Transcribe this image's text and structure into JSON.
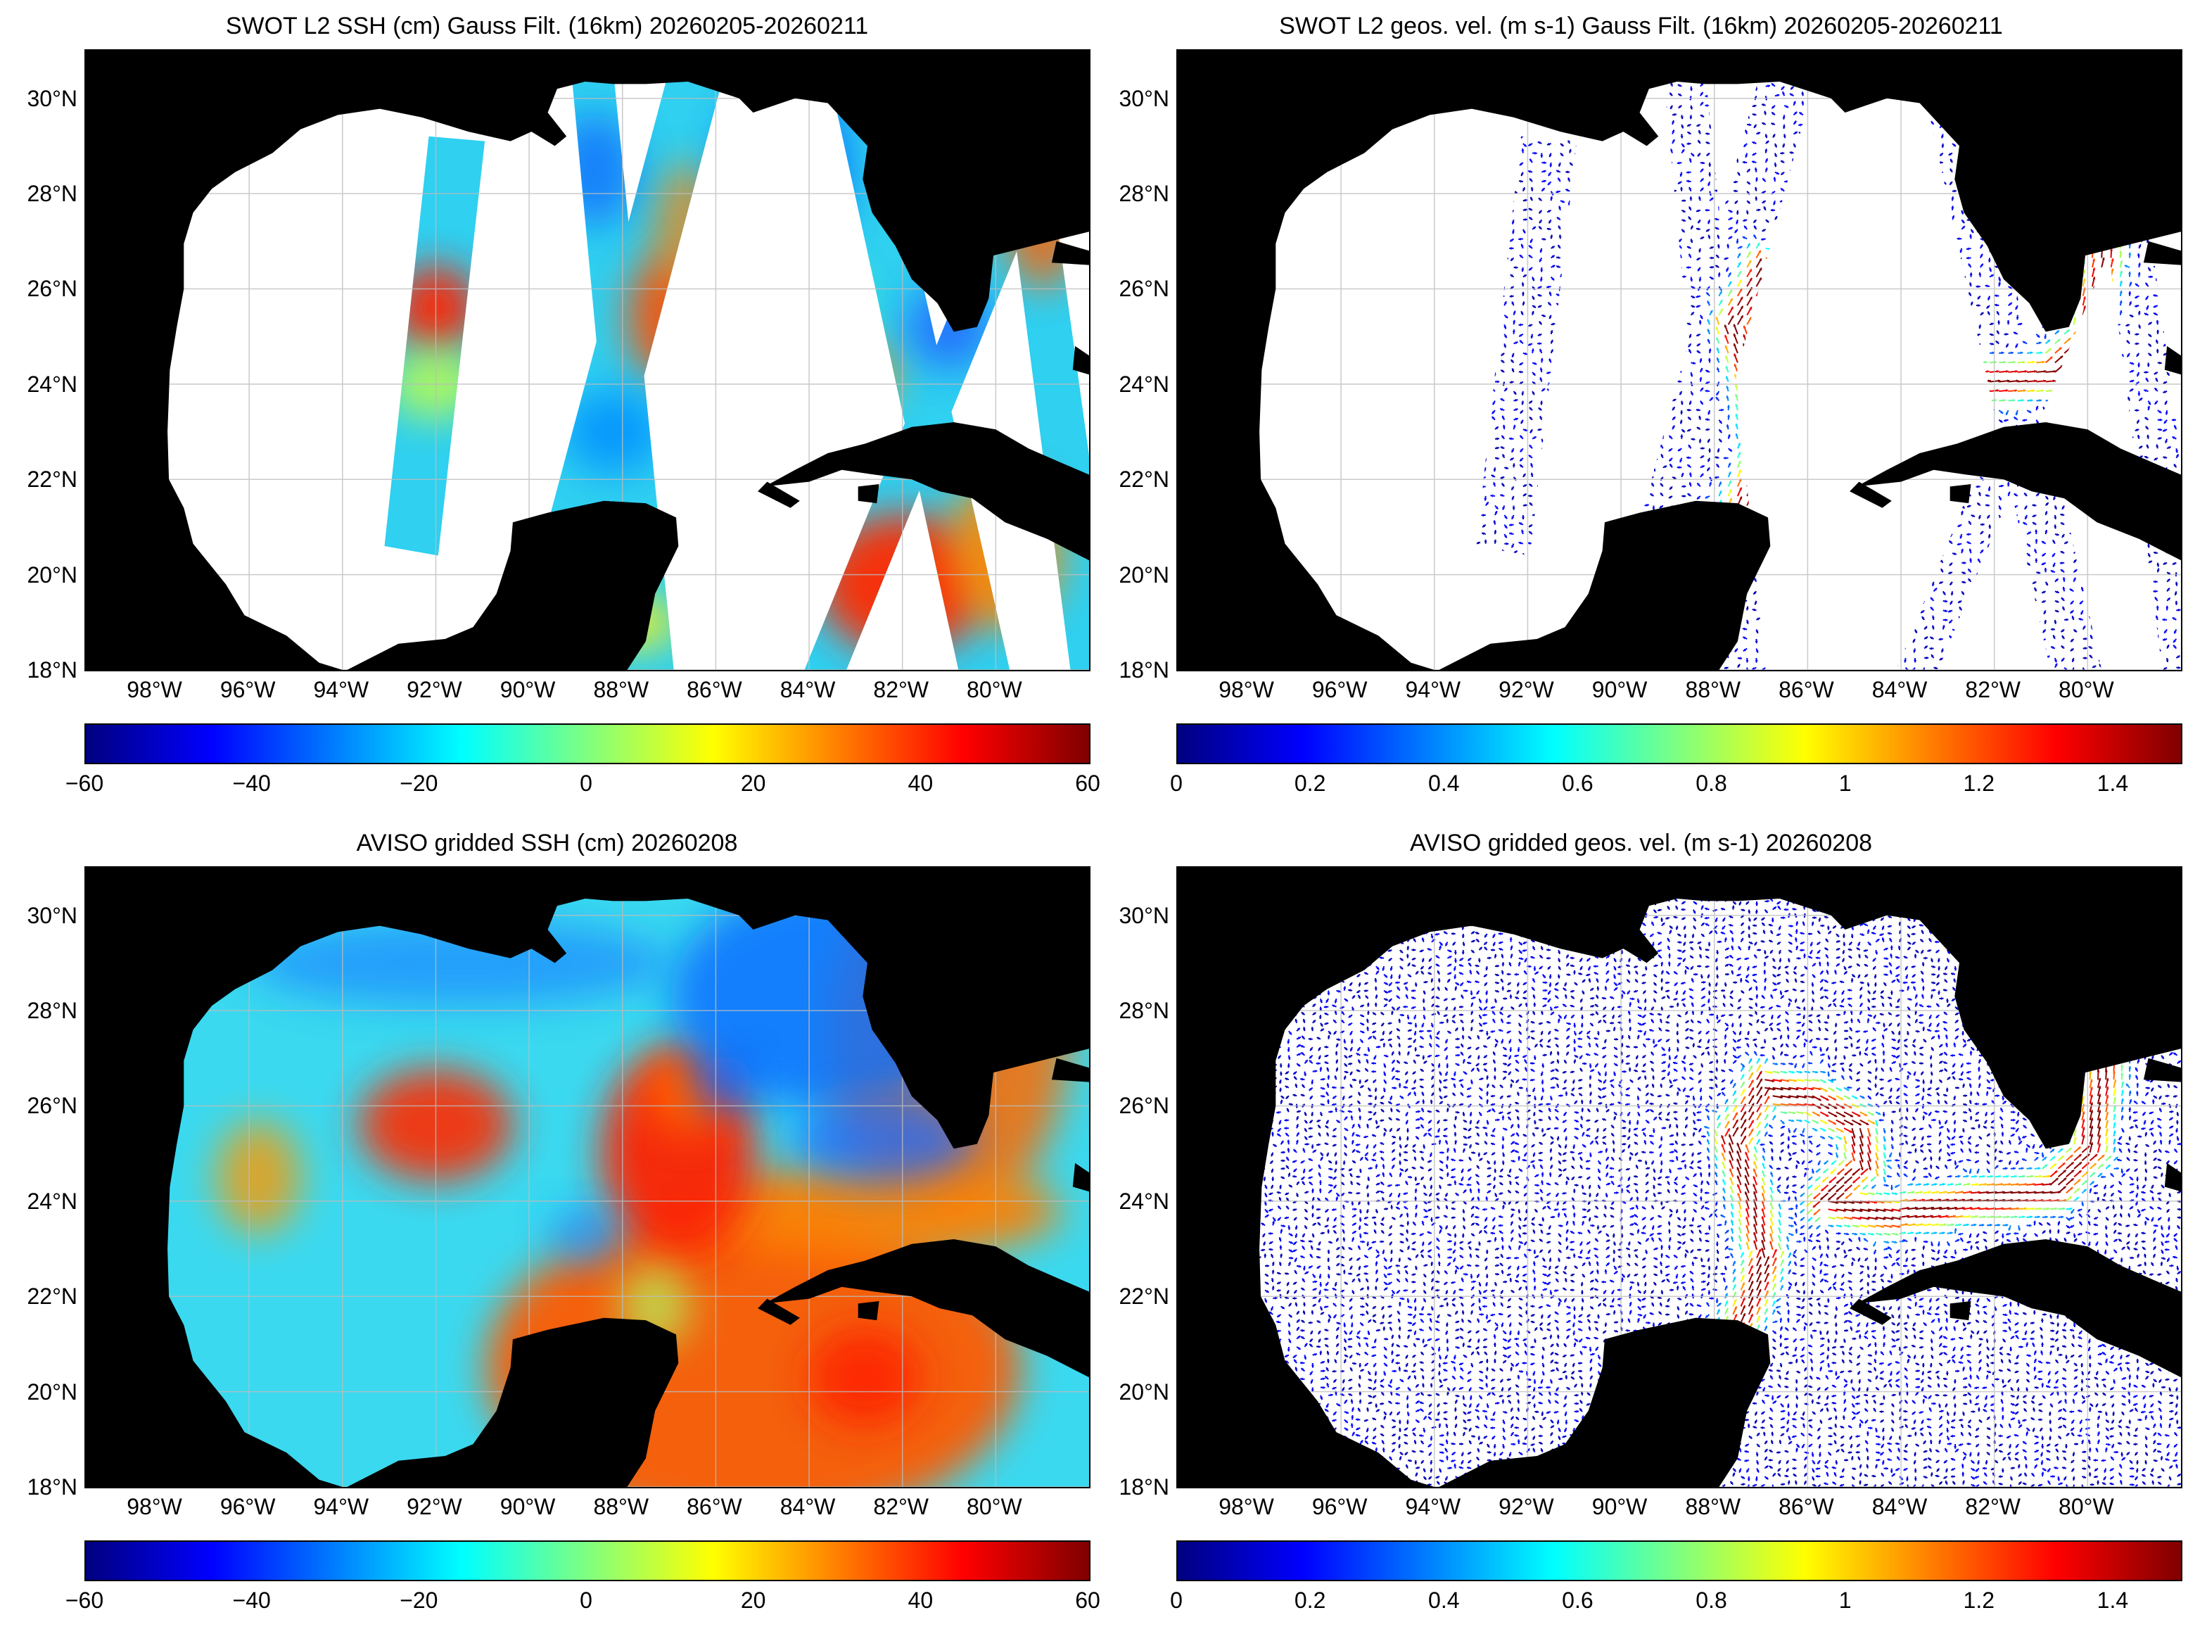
{
  "map_extent": {
    "lon_min": -99.5,
    "lon_max": -78.0,
    "lat_min": 18.0,
    "lat_max": 31.0
  },
  "lat_ticks": [
    "30°N",
    "28°N",
    "26°N",
    "24°N",
    "22°N",
    "20°N",
    "18°N"
  ],
  "lat_tick_values": [
    30,
    28,
    26,
    24,
    22,
    20,
    18
  ],
  "lon_ticks": [
    "98°W",
    "96°W",
    "94°W",
    "92°W",
    "90°W",
    "88°W",
    "86°W",
    "84°W",
    "82°W",
    "80°W"
  ],
  "lon_tick_values": [
    -98,
    -96,
    -94,
    -92,
    -90,
    -88,
    -86,
    -84,
    -82,
    -80
  ],
  "colors": {
    "land": "#000000",
    "no_data": "#ffffff",
    "grid": "#bdbdbd",
    "jet": [
      "#00007f",
      "#0000ff",
      "#007fff",
      "#00ffff",
      "#7fff7f",
      "#ffff00",
      "#ff7f00",
      "#ff0000",
      "#7f0000"
    ]
  },
  "panels": [
    {
      "title": "SWOT L2 SSH (cm) Gauss Filt. (16km) 20260205-20260211",
      "kind": "ssh_swaths",
      "colorbar": {
        "min": -60,
        "max": 60,
        "labels": [
          "−60",
          "−40",
          "−20",
          "0",
          "20",
          "40",
          "60"
        ],
        "values": [
          -60,
          -40,
          -20,
          0,
          20,
          40,
          60
        ]
      }
    },
    {
      "title": "SWOT L2 geos. vel. (m s-1) Gauss Filt. (16km) 20260205-20260211",
      "kind": "vel_swaths",
      "colorbar": {
        "min": 0,
        "max": 1.5,
        "labels": [
          "0",
          "0.2",
          "0.4",
          "0.6",
          "0.8",
          "1",
          "1.2",
          "1.4"
        ],
        "values": [
          0,
          0.2,
          0.4,
          0.6,
          0.8,
          1,
          1.2,
          1.4
        ]
      }
    },
    {
      "title": "AVISO gridded SSH (cm) 20260208",
      "kind": "ssh_grid",
      "colorbar": {
        "min": -60,
        "max": 60,
        "labels": [
          "−60",
          "−40",
          "−20",
          "0",
          "20",
          "40",
          "60"
        ],
        "values": [
          -60,
          -40,
          -20,
          0,
          20,
          40,
          60
        ]
      }
    },
    {
      "title": "AVISO gridded geos. vel. (m s-1)  20260208",
      "kind": "vel_grid",
      "colorbar": {
        "min": 0,
        "max": 1.5,
        "labels": [
          "0",
          "0.2",
          "0.4",
          "0.6",
          "0.8",
          "1",
          "1.2",
          "1.4"
        ],
        "values": [
          0,
          0.2,
          0.4,
          0.6,
          0.8,
          1,
          1.2,
          1.4
        ]
      }
    }
  ]
}
